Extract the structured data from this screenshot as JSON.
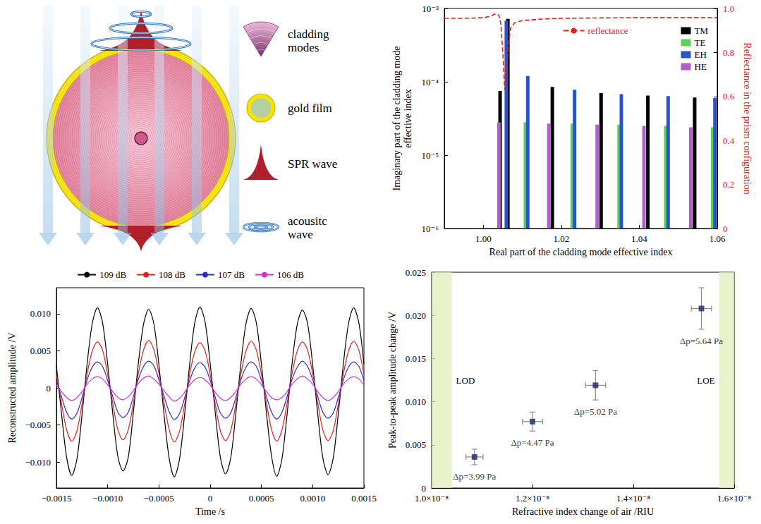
{
  "diagram": {
    "labels": [
      "cladding modes",
      "gold film",
      "SPR wave",
      "acousitc wave"
    ]
  },
  "chart_data": [
    {
      "type": "bar",
      "x_label": "Real part of the cladding mode effective index",
      "y_label": "Imaginary part of the cladding mode effective index",
      "y2_label": "Reflectance in the prism configuration",
      "xlim": [
        0.99,
        1.06
      ],
      "xticks": [
        {
          "value": 1.0,
          "label": "1.00"
        },
        {
          "value": 1.02,
          "label": "1.02"
        },
        {
          "value": 1.04,
          "label": "1.04"
        },
        {
          "value": 1.06,
          "label": "1.06"
        }
      ],
      "ylim": [
        1e-06,
        0.001
      ],
      "yticks": [
        {
          "value": 1e-06,
          "label": "10⁻⁶"
        },
        {
          "value": 1e-05,
          "label": "10⁻⁵"
        },
        {
          "value": 0.0001,
          "label": "10⁻⁴"
        },
        {
          "value": 0.001,
          "label": "10⁻³"
        }
      ],
      "y2lim": [
        0,
        1
      ],
      "y2ticks": [
        0,
        0.2,
        0.4,
        0.6,
        0.8,
        {
          "value": 1,
          "label": "1.0"
        }
      ],
      "log": "y",
      "grid": false,
      "legend": "upper right",
      "series": [
        {
          "name": "TM",
          "color": "#000000",
          "x": [
            1.0043,
            1.0063,
            1.0177,
            1.0302,
            1.0422,
            1.0542
          ],
          "values": [
            7.5e-05,
            0.00072,
            8.5e-05,
            7e-05,
            6.5e-05,
            6.1e-05
          ]
        },
        {
          "name": "TE",
          "color": "#5ccf5c",
          "x": [
            1.0108,
            1.0228,
            1.0348,
            1.0468,
            1.0588
          ],
          "values": [
            2.8e-05,
            2.7e-05,
            2.6e-05,
            2.5e-05,
            2.4e-05
          ]
        },
        {
          "name": "EH",
          "color": "#2a55c8",
          "x": [
            1.0059,
            1.0114,
            1.0234,
            1.0354,
            1.0474,
            1.0594
          ],
          "values": [
            0.00068,
            0.00012,
            7.8e-05,
            6.8e-05,
            6.4e-05,
            6e-05
          ]
        },
        {
          "name": "HE",
          "color": "#b060c8",
          "x": [
            1.004,
            1.0168,
            1.0292,
            1.0412,
            1.0532
          ],
          "values": [
            2.8e-05,
            2.7e-05,
            2.6e-05,
            2.5e-05,
            2.4e-05
          ]
        },
        {
          "name": "reflectance",
          "type": "line",
          "line_style": "dashed",
          "axis": "y2",
          "color": "#e0201b",
          "x": [
            0.99,
            0.995,
            1.0,
            1.002,
            1.003,
            1.004,
            1.0045,
            1.005,
            1.0055,
            1.006,
            1.0065,
            1.007,
            1.008,
            1.01,
            1.015,
            1.02,
            1.03,
            1.04,
            1.05,
            1.06
          ],
          "values": [
            0.955,
            0.955,
            0.958,
            0.965,
            0.975,
            0.97,
            0.93,
            0.8,
            0.63,
            0.72,
            0.85,
            0.91,
            0.935,
            0.945,
            0.952,
            0.955,
            0.957,
            0.958,
            0.958,
            0.958
          ]
        }
      ]
    },
    {
      "type": "line",
      "x_label": "Time /s",
      "y_label": "Reconstructed amplitude /V",
      "xlim": [
        -0.0015,
        0.0015
      ],
      "xticks": [
        {
          "value": -0.0015,
          "label": "−0.0015"
        },
        {
          "value": -0.001,
          "label": "−0.0010"
        },
        {
          "value": -0.0005,
          "label": "−0.0005"
        },
        0,
        0.0005,
        {
          "value": 0.001,
          "label": "0.0010"
        },
        0.0015
      ],
      "ylim": [
        -0.0135,
        0.0135
      ],
      "yticks": [
        {
          "value": -0.01,
          "label": "−0.010"
        },
        {
          "value": -0.005,
          "label": "−0.005"
        },
        0,
        0.005,
        {
          "value": 0.01,
          "label": "0.010"
        }
      ],
      "grid": false,
      "legend": "top",
      "x": [
        -0.0015,
        -0.00145,
        -0.0014,
        -0.00135,
        -0.0013,
        -0.00125,
        -0.0012,
        -0.00115,
        -0.0011,
        -0.00105,
        -0.001,
        -0.00095,
        -0.0009,
        -0.00085,
        -0.0008,
        -0.00075,
        -0.0007,
        -0.00065,
        -0.0006,
        -0.00055,
        -0.0005,
        -0.00045,
        -0.0004,
        -0.00035,
        -0.0003,
        -0.00025,
        -0.0002,
        -0.00015,
        -0.0001,
        -5e-05,
        0,
        5e-05,
        0.0001,
        0.00015,
        0.0002,
        0.00025,
        0.0003,
        0.00035,
        0.0004,
        0.00045,
        0.0005,
        0.00055,
        0.0006,
        0.00065,
        0.0007,
        0.00075,
        0.0008,
        0.00085,
        0.0009,
        0.00095,
        0.001,
        0.00105,
        0.0011,
        0.00115,
        0.0012,
        0.00125,
        0.0013,
        0.00135,
        0.0014,
        0.00145,
        0.0015
      ],
      "series": [
        {
          "name": "109 dB",
          "color": "#000000",
          "values": [
            0.003,
            -0.0035,
            -0.0094,
            -0.0118,
            -0.0096,
            -0.0036,
            0.0033,
            0.0087,
            0.0108,
            0.0088,
            0.0032,
            -0.0035,
            -0.0093,
            -0.0112,
            -0.0094,
            -0.0034,
            0.0034,
            0.0086,
            0.0106,
            0.0087,
            0.0031,
            -0.0036,
            -0.0095,
            -0.012,
            -0.0097,
            -0.0037,
            0.0032,
            0.0088,
            0.0109,
            0.0089,
            0.0033,
            -0.0034,
            -0.0094,
            -0.0116,
            -0.0095,
            -0.0035,
            0.0033,
            0.0087,
            0.0107,
            0.0088,
            0.0032,
            -0.0035,
            -0.0093,
            -0.0119,
            -0.0096,
            -0.0036,
            0.0034,
            0.0086,
            0.0105,
            0.0087,
            0.0031,
            -0.0036,
            -0.0095,
            -0.0117,
            -0.0095,
            -0.0035,
            0.0033,
            0.0087,
            0.0108,
            0.0088,
            0.0032
          ]
        },
        {
          "name": "108 dB",
          "color": "#e0201b",
          "values": [
            0.0018,
            -0.0021,
            -0.0057,
            -0.0072,
            -0.0058,
            -0.0022,
            0.0019,
            0.005,
            0.0062,
            0.0051,
            0.0018,
            -0.0021,
            -0.0057,
            -0.007,
            -0.0057,
            -0.0021,
            0.002,
            0.0051,
            0.0064,
            0.0052,
            0.0019,
            -0.002,
            -0.0056,
            -0.0073,
            -0.0059,
            -0.0023,
            0.0018,
            0.0049,
            0.0061,
            0.005,
            0.0018,
            -0.0022,
            -0.0058,
            -0.0071,
            -0.0058,
            -0.0022,
            0.0019,
            0.005,
            0.0063,
            0.0051,
            0.0018,
            -0.0021,
            -0.0057,
            -0.0072,
            -0.0057,
            -0.0021,
            0.002,
            0.005,
            0.0062,
            0.0051,
            0.0019,
            -0.0021,
            -0.0057,
            -0.0071,
            -0.0058,
            -0.0022,
            0.0019,
            0.005,
            0.0063,
            0.0051,
            0.0018
          ]
        },
        {
          "name": "107 dB",
          "color": "#2b2bcc",
          "values": [
            0.001,
            -0.0012,
            -0.0033,
            -0.0042,
            -0.0034,
            -0.0013,
            0.0011,
            0.0028,
            0.0035,
            0.0029,
            0.001,
            -0.0012,
            -0.0033,
            -0.004,
            -0.0033,
            -0.0012,
            0.0012,
            0.0029,
            0.0036,
            0.003,
            0.0011,
            -0.0011,
            -0.0032,
            -0.0043,
            -0.0035,
            -0.0014,
            0.001,
            0.0027,
            0.0034,
            0.0028,
            0.001,
            -0.0013,
            -0.0034,
            -0.0041,
            -0.0034,
            -0.0013,
            0.0011,
            0.0028,
            0.0035,
            0.0029,
            0.001,
            -0.0012,
            -0.0033,
            -0.0042,
            -0.0033,
            -0.0012,
            0.0012,
            0.0028,
            0.0036,
            0.0029,
            0.0011,
            -0.0012,
            -0.0033,
            -0.0041,
            -0.0034,
            -0.0013,
            0.0011,
            0.0028,
            0.0035,
            0.0029,
            0.001
          ]
        },
        {
          "name": "106 dB",
          "color": "#cc33cc",
          "values": [
            0.0004,
            -0.0005,
            -0.0013,
            -0.0017,
            -0.0013,
            -0.0005,
            0.0005,
            0.0012,
            0.0015,
            0.0012,
            0.0004,
            -0.0005,
            -0.0013,
            -0.0016,
            -0.0012,
            -0.0004,
            0.0006,
            0.0013,
            0.0016,
            0.0012,
            0.0005,
            -0.0004,
            -0.0012,
            -0.0018,
            -0.0014,
            -0.0006,
            0.0004,
            0.0011,
            0.0014,
            0.0011,
            0.0004,
            -0.0006,
            -0.0014,
            -0.0017,
            -0.0013,
            -0.0005,
            0.0005,
            0.0012,
            0.0015,
            0.0012,
            0.0004,
            -0.0005,
            -0.0013,
            -0.0016,
            -0.0013,
            -0.0005,
            0.0005,
            0.0012,
            0.0016,
            0.0012,
            0.0005,
            -0.0005,
            -0.0013,
            -0.0017,
            -0.0013,
            -0.0005,
            0.0005,
            0.0012,
            0.0015,
            0.0012,
            0.0004
          ]
        }
      ]
    },
    {
      "type": "scatter",
      "x_label": "Refractive index change of air /RIU",
      "y_label": "Peak-to-peak amplitude change /V",
      "xlim": [
        1e-08,
        1.6e-08
      ],
      "xticks": [
        {
          "value": 1e-08,
          "label": "1.0×10⁻⁸"
        },
        {
          "value": 1.2e-08,
          "label": "1.2×10⁻⁸"
        },
        {
          "value": 1.4e-08,
          "label": "1.4×10⁻⁸"
        },
        {
          "value": 1.6e-08,
          "label": "1.6×10⁻⁸"
        }
      ],
      "ylim": [
        0,
        0.025
      ],
      "yticks": [
        0,
        0.005,
        {
          "value": 0.01,
          "label": "0.010"
        },
        0.015,
        {
          "value": 0.02,
          "label": "0.020"
        },
        0.025
      ],
      "grid": false,
      "color": "#1a2a6c",
      "marker": "square",
      "x": [
        1.085e-08,
        1.2e-08,
        1.325e-08,
        1.535e-08
      ],
      "values": [
        0.0036,
        0.0077,
        0.0119,
        0.0208
      ],
      "x_error": [
        1.7e-10,
        2e-10,
        2e-10,
        2e-10
      ],
      "y_error": [
        0.0009,
        0.0011,
        0.0017,
        0.0024
      ],
      "point_labels": [
        "Δp=3.99 Pa",
        "Δp=4.47 Pa",
        "Δp=5.02 Pa",
        "Δp=5.64 Pa"
      ],
      "regions": [
        {
          "label": "LOD",
          "x": [
            1e-08,
            1.04e-08
          ]
        },
        {
          "label": "LOE",
          "x": [
            1.57e-08,
            1.6e-08
          ]
        }
      ]
    }
  ]
}
